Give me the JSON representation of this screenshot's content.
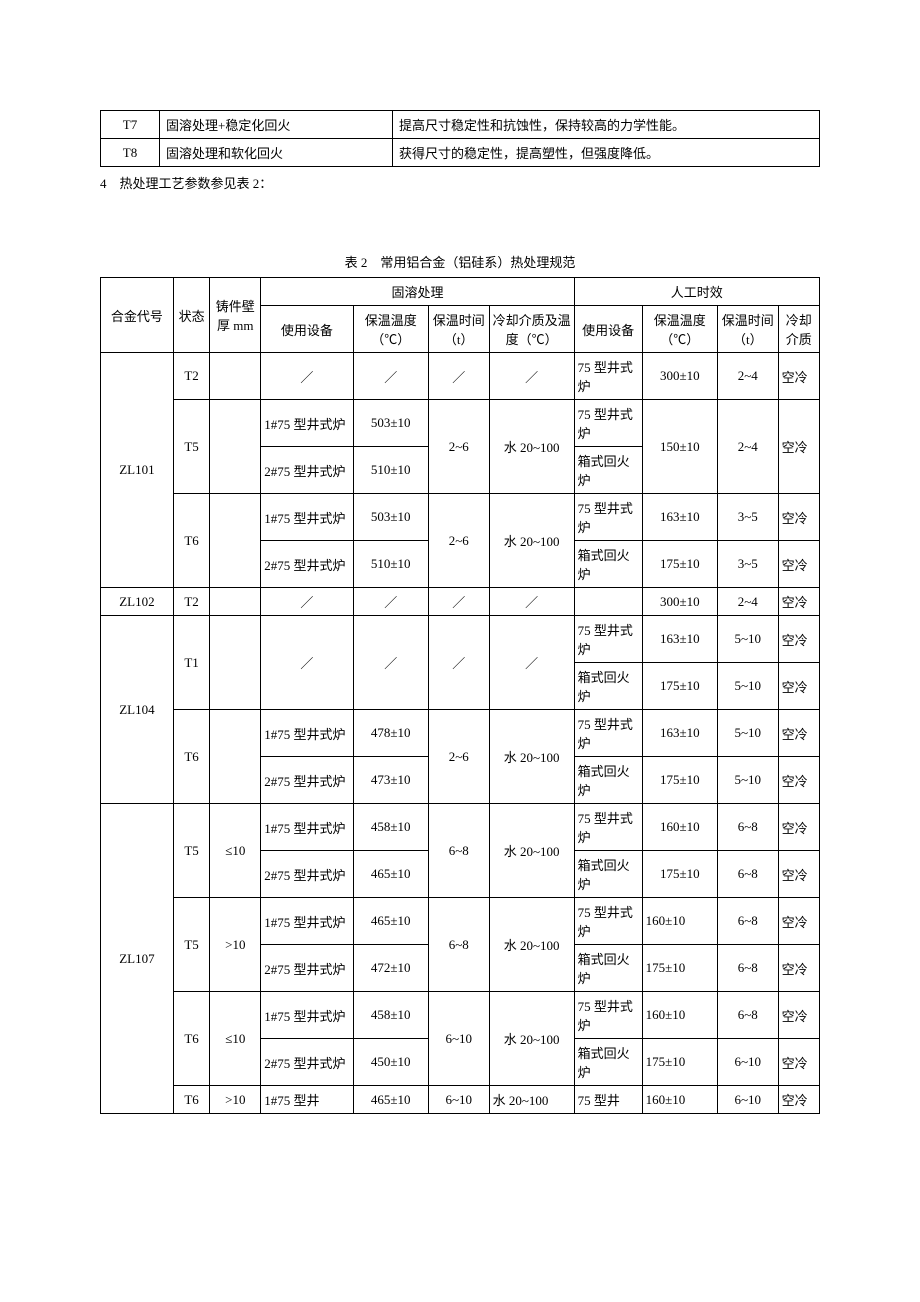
{
  "table1": {
    "rows": [
      {
        "code": "T7",
        "process": "固溶处理+稳定化回火",
        "desc": "提高尺寸稳定性和抗蚀性，保持较高的力学性能。"
      },
      {
        "code": "T8",
        "process": "固溶处理和软化回火",
        "desc": "获得尺寸的稳定性，提高塑性，但强度降低。"
      }
    ]
  },
  "note_line": "4　热处理工艺参数参见表 2：",
  "caption": "表 2　常用铝合金（铝硅系）热处理规范",
  "headers": {
    "alloy": "合金代号",
    "state": "状态",
    "wall": "铸件壁厚 mm",
    "solution": "固溶处理",
    "aging": "人工时效",
    "equip": "使用设备",
    "temp": "保温温度（℃）",
    "time": "保温时间（t）",
    "cool_medium_temp": "冷却介质及温度（℃）",
    "cool_medium": "冷却介质"
  },
  "zl101": {
    "alloy": "ZL101",
    "t2": {
      "state": "T2",
      "equip": "／",
      "temp": "／",
      "time": "／",
      "cool": "／",
      "a_equip": "75 型井式炉",
      "a_temp": "300±10",
      "a_time": "2~4",
      "a_cool": "空冷"
    },
    "t5": {
      "state": "T5",
      "r1": {
        "equip": "1#75 型井式炉",
        "temp": "503±10"
      },
      "r2": {
        "equip": "2#75 型井式炉",
        "temp": "510±10"
      },
      "time": "2~6",
      "cool": "水 20~100",
      "a_equip1": "75 型井式炉",
      "a_equip2": "箱式回火炉",
      "a_temp": "150±10",
      "a_time": "2~4",
      "a_cool": "空冷"
    },
    "t6": {
      "state": "T6",
      "r1": {
        "equip": "1#75 型井式炉",
        "temp": "503±10",
        "a_equip": "75 型井式炉",
        "a_temp": "163±10",
        "a_time": "3~5",
        "a_cool": "空冷"
      },
      "r2": {
        "equip": "2#75 型井式炉",
        "temp": "510±10",
        "a_equip": "箱式回火炉",
        "a_temp": "175±10",
        "a_time": "3~5",
        "a_cool": "空冷"
      },
      "time": "2~6",
      "cool": "水 20~100"
    }
  },
  "zl102": {
    "alloy": "ZL102",
    "state": "T2",
    "equip": "／",
    "temp": "／",
    "time": "／",
    "cool": "／",
    "a_temp": "300±10",
    "a_time": "2~4",
    "a_cool": "空冷"
  },
  "zl104": {
    "alloy": "ZL104",
    "t1": {
      "state": "T1",
      "equip": "／",
      "temp": "／",
      "time": "／",
      "cool": "／",
      "r1": {
        "a_equip": "75 型井式炉",
        "a_temp": "163±10",
        "a_time": "5~10",
        "a_cool": "空冷"
      },
      "r2": {
        "a_equip": "箱式回火炉",
        "a_temp": "175±10",
        "a_time": "5~10",
        "a_cool": "空冷"
      }
    },
    "t6": {
      "state": "T6",
      "r1": {
        "equip": "1#75 型井式炉",
        "temp": "478±10",
        "a_equip": "75 型井式炉",
        "a_temp": "163±10",
        "a_time": "5~10",
        "a_cool": "空冷"
      },
      "r2": {
        "equip": "2#75 型井式炉",
        "temp": "473±10",
        "a_equip": "箱式回火炉",
        "a_temp": "175±10",
        "a_time": "5~10",
        "a_cool": "空冷"
      },
      "time": "2~6",
      "cool": "水 20~100"
    }
  },
  "zl107": {
    "alloy": "ZL107",
    "t5a": {
      "state": "T5",
      "wall": "≤10",
      "r1": {
        "equip": "1#75 型井式炉",
        "temp": "458±10",
        "a_equip": "75 型井式炉",
        "a_temp": "160±10",
        "a_time": "6~8",
        "a_cool": "空冷"
      },
      "r2": {
        "equip": "2#75 型井式炉",
        "temp": "465±10",
        "a_equip": "箱式回火炉",
        "a_temp": "175±10",
        "a_time": "6~8",
        "a_cool": "空冷"
      },
      "time": "6~8",
      "cool": "水 20~100"
    },
    "t5b": {
      "state": "T5",
      "wall": ">10",
      "r1": {
        "equip": "1#75 型井式炉",
        "temp": "465±10",
        "a_equip": "75 型井式炉",
        "a_temp": "160±10",
        "a_time": "6~8",
        "a_cool": "空冷"
      },
      "r2": {
        "equip": "2#75 型井式炉",
        "temp": "472±10",
        "a_equip": "箱式回火炉",
        "a_temp": "175±10",
        "a_time": "6~8",
        "a_cool": "空冷"
      },
      "time": "6~8",
      "cool": "水 20~100"
    },
    "t6a": {
      "state": "T6",
      "wall": "≤10",
      "r1": {
        "equip": "1#75 型井式炉",
        "temp": "458±10",
        "a_equip": "75 型井式炉",
        "a_temp": "160±10",
        "a_time": "6~8",
        "a_cool": "空冷"
      },
      "r2": {
        "equip": "2#75 型井式炉",
        "temp": "450±10",
        "a_equip": "箱式回火炉",
        "a_temp": "175±10",
        "a_time": "6~10",
        "a_cool": "空冷"
      },
      "time": "6~10",
      "cool": "水 20~100"
    },
    "t6b": {
      "state": "T6",
      "wall": ">10",
      "equip": "1#75 型井",
      "temp": "465±10",
      "time": "6~10",
      "cool": "水 20~100",
      "a_equip": "75 型井",
      "a_temp": "160±10",
      "a_time": "6~10",
      "a_cool": "空冷"
    }
  }
}
